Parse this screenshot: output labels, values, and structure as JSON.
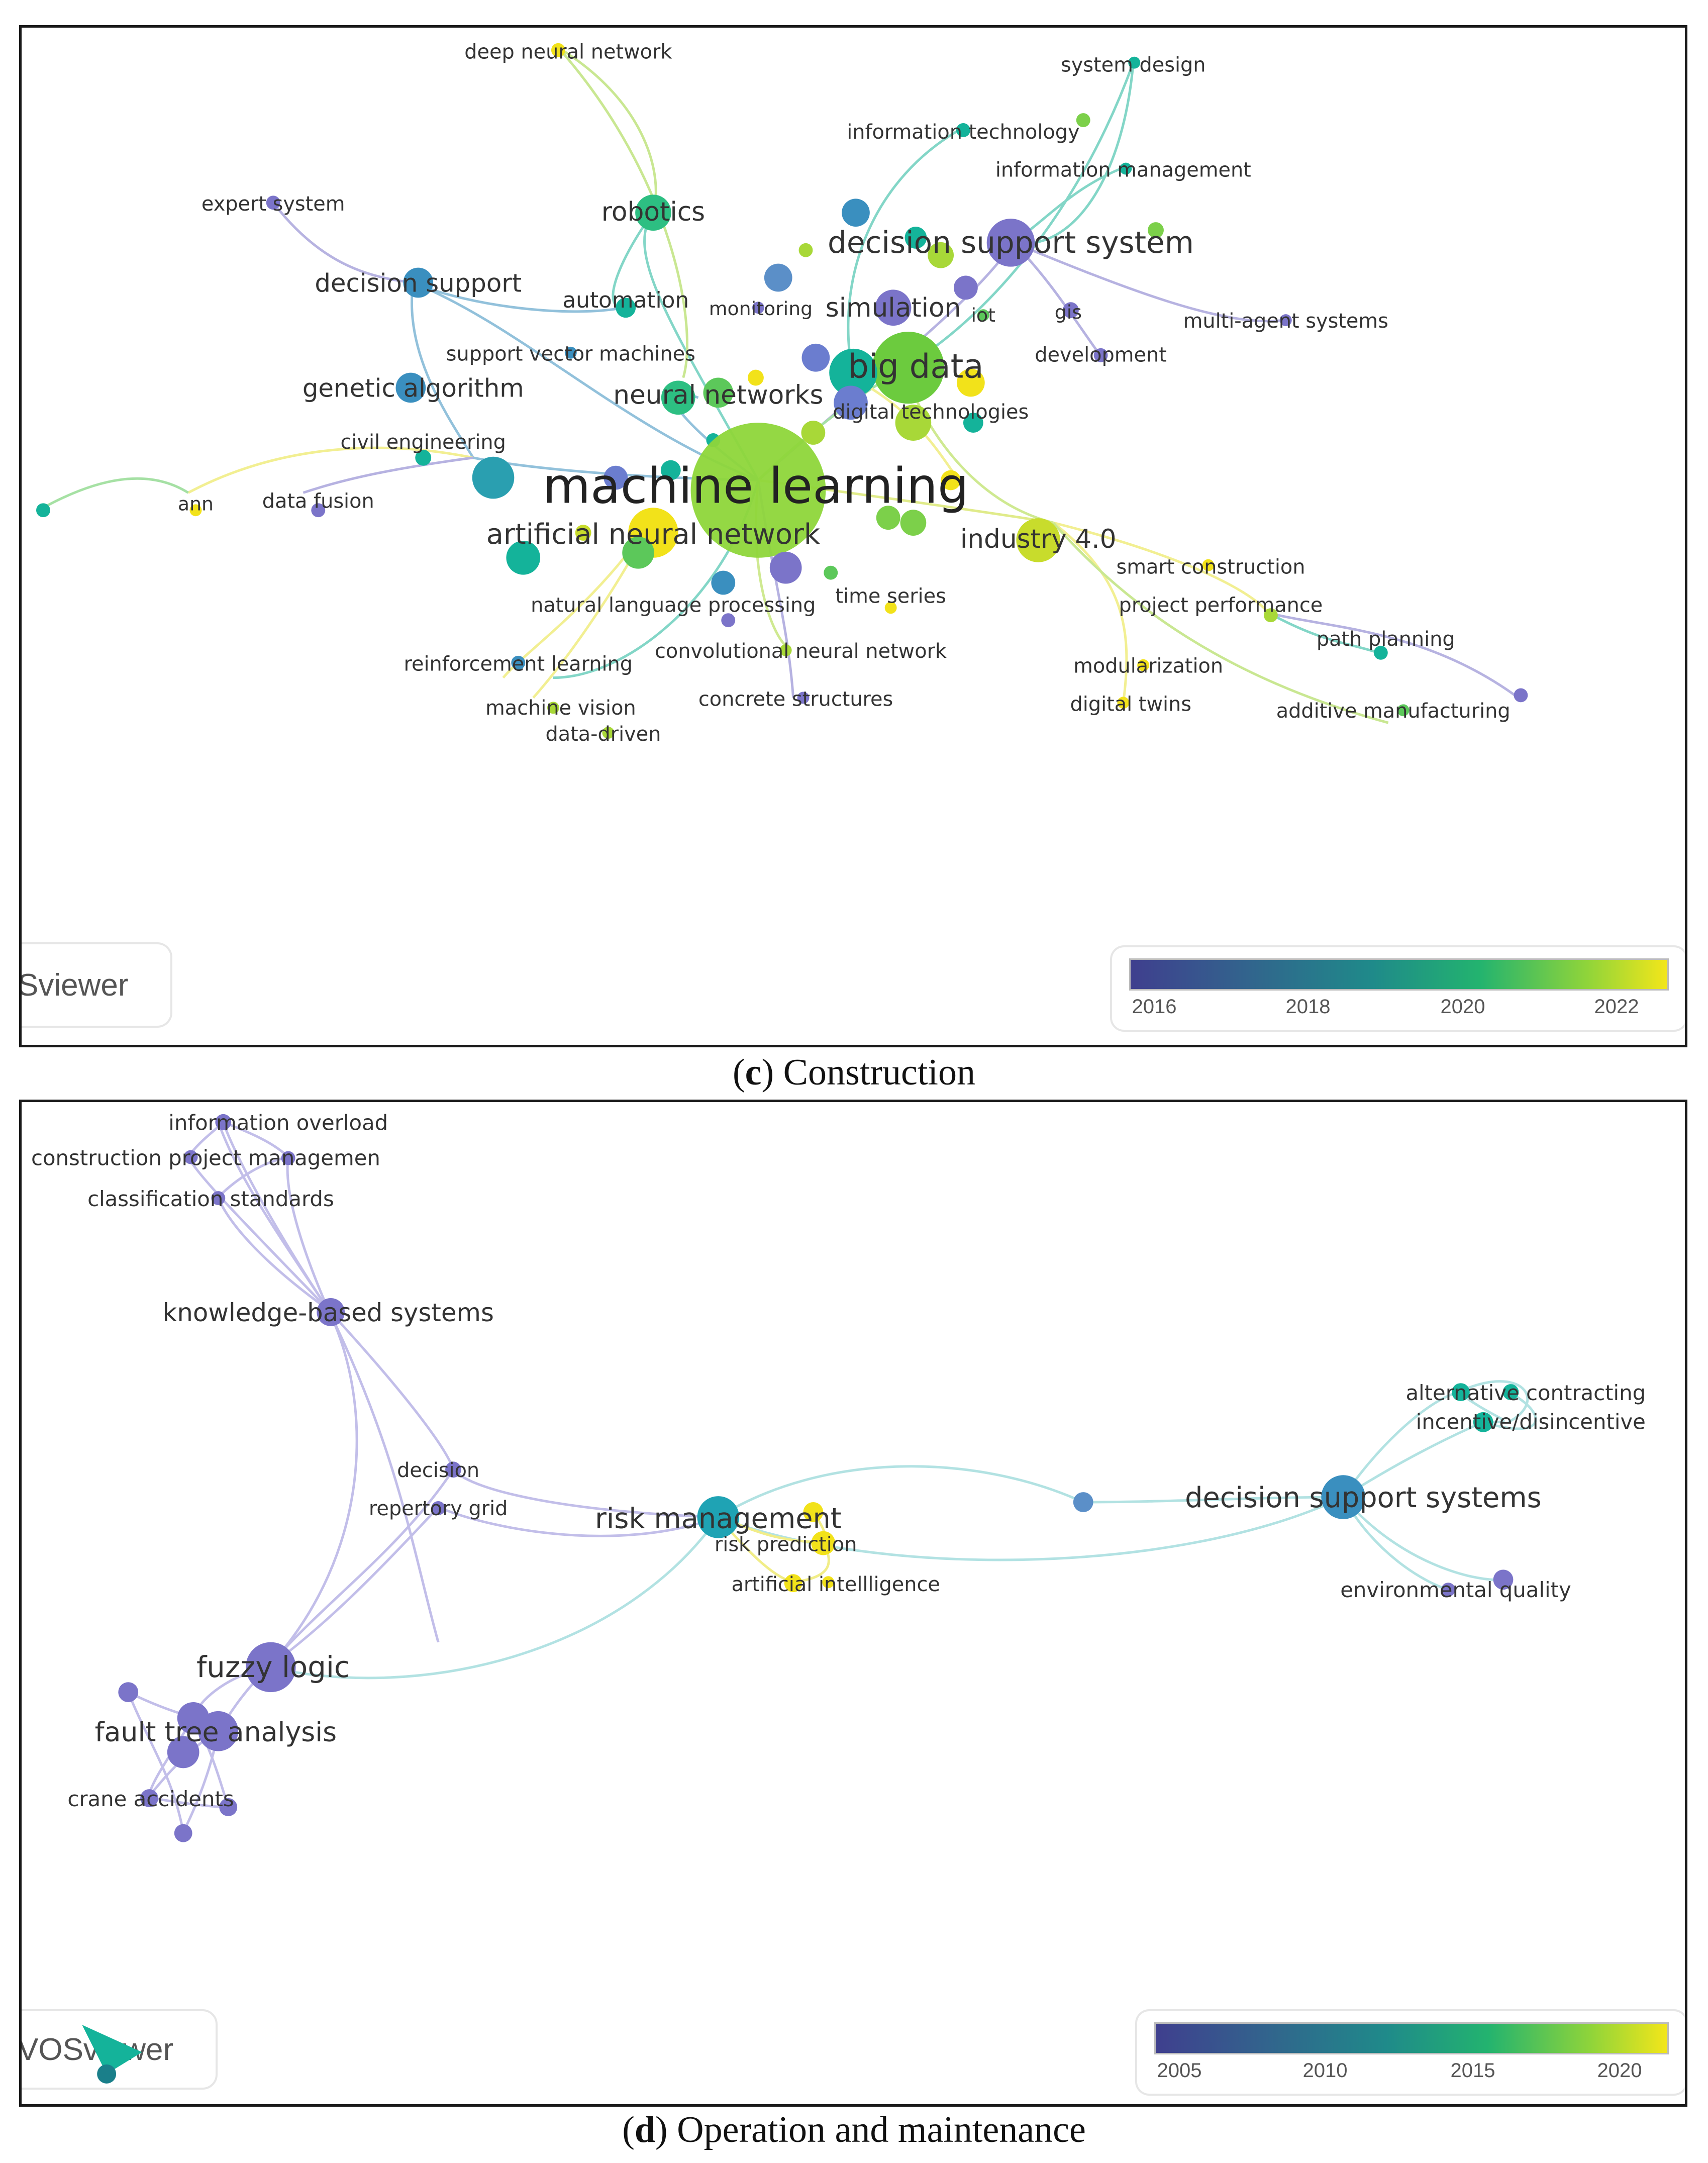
{
  "panel_c": {
    "caption_letter": "c",
    "caption_text": " Construction",
    "brand": "Sviewer",
    "legend_ticks": [
      "2016",
      "2018",
      "2020",
      "2022"
    ],
    "labels": {
      "deep_neural_network": "deep neural network",
      "system_design": "system design",
      "information_technology": "information technology",
      "information_management": "information management",
      "expert_system": "expert system",
      "robotics": "robotics",
      "decision_support_system": "decision support system",
      "decision_support": "decision support",
      "automation": "automation",
      "monitoring": "monitoring",
      "simulation": "simulation",
      "iot": "iot",
      "gis": "gis",
      "multi_agent_systems": "multi-agent systems",
      "support_vector_machines": "support vector machines",
      "big_data": "big data",
      "development": "development",
      "genetic_algorithm": "genetic algorithm",
      "neural_networks": "neural networks",
      "digital_technologies": "digital technologies",
      "civil_engineering": "civil engineering",
      "machine_learning": "machine learning",
      "ann": "ann",
      "data_fusion": "data fusion",
      "artificial_neural_network": "artificial neural network",
      "industry_4_0": "industry 4.0",
      "smart_construction": "smart construction",
      "natural_language_processing": "natural language processing",
      "time_series": "time series",
      "project_performance": "project performance",
      "path_planning": "path planning",
      "convolutional_neural_network": "convolutional neural network",
      "modularization": "modularization",
      "reinforcement_learning": "reinforcement learning",
      "concrete_structures": "concrete structures",
      "digital_twins": "digital twins",
      "additive_manufacturing": "additive manufacturing",
      "machine_vision": "machine vision",
      "data_driven": "data-driven"
    }
  },
  "panel_d": {
    "caption_letter": "d",
    "caption_text": " Operation and maintenance",
    "brand": "VOSviewer",
    "legend_ticks": [
      "2005",
      "2010",
      "2015",
      "2020"
    ],
    "labels": {
      "information_overload": "information overload",
      "construction_project_managemen": "construction project managemen",
      "classification_standards": "classification standards",
      "knowledge_based_systems": "knowledge-based systems",
      "decision": "decision",
      "repertory_grid": "repertory grid",
      "risk_management": "risk management",
      "risk_prediction": "risk prediction",
      "artificial_intellligence": "artificial intellligence",
      "alternative_contracting": "alternative contracting",
      "incentive_disincentive": "incentive/disincentive",
      "decision_support_systems": "decision support systems",
      "environmental_quality": "environmental quality",
      "fuzzy_logic": "fuzzy logic",
      "fault_tree_analysis": "fault tree analysis",
      "crane_accidents": "crane accidents"
    }
  },
  "colors": {
    "purple": "#7b74c9",
    "blue": "#3a8fbf",
    "teal": "#14b39a",
    "green": "#5cc85a",
    "lime": "#a8d838",
    "yellow": "#f2e21a"
  }
}
